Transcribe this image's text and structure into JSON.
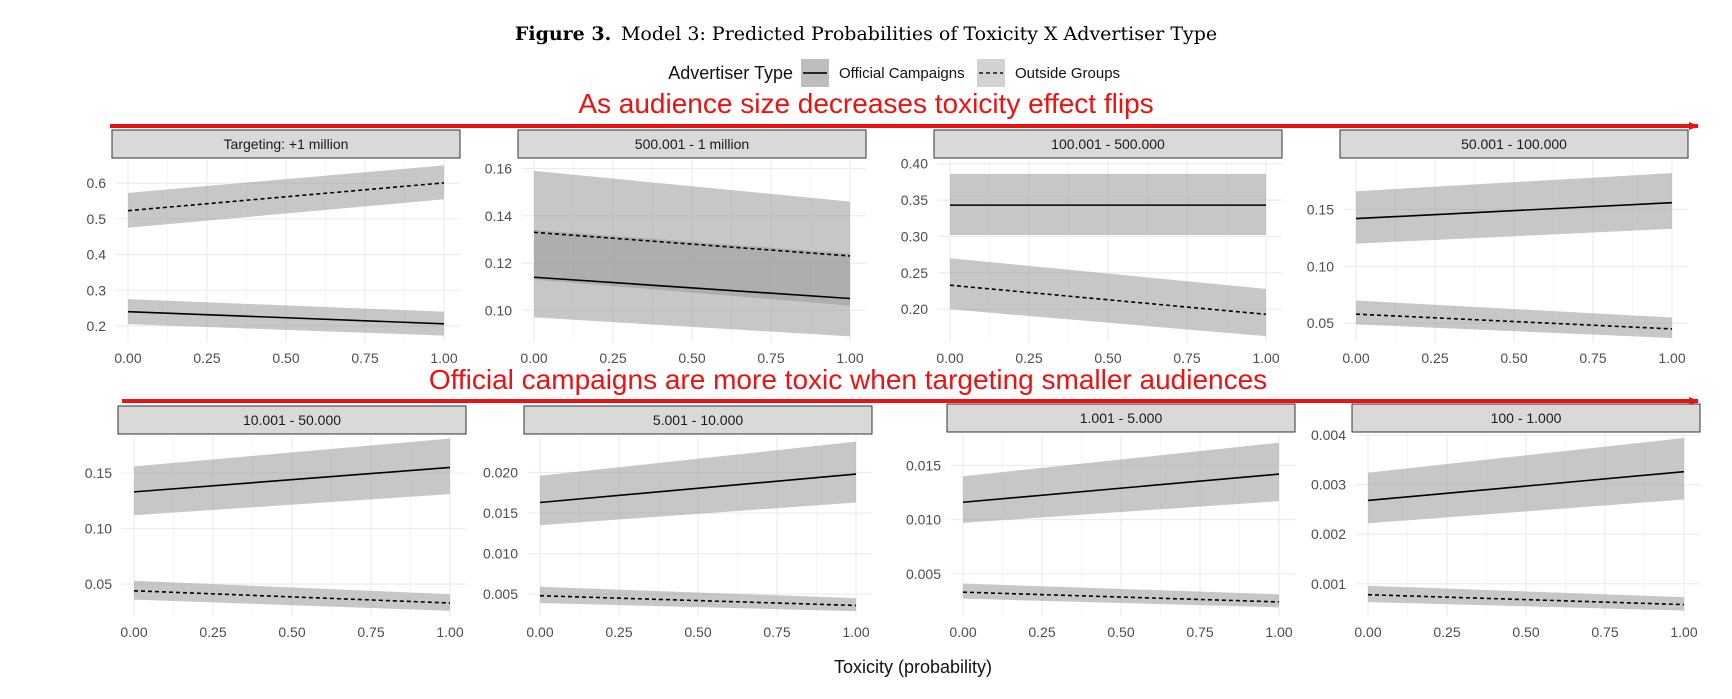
{
  "figure": {
    "label": "Figure 3.",
    "caption": "Model 3: Predicted Probabilities of Toxicity X Advertiser Type",
    "legend_title": "Advertiser Type",
    "legend_entries": [
      {
        "name": "Official Campaigns",
        "style": "solid"
      },
      {
        "name": "Outside Groups",
        "style": "dashed"
      }
    ],
    "annotation_top": "As audience size decreases toxicity effect flips",
    "annotation_bottom": "Official campaigns are more toxic when targeting smaller audiences",
    "xlabel": "Toxicity (probability)",
    "colors": {
      "annotation": "#ee1111",
      "band": "#999999",
      "grid": "#ebebeb",
      "strip": "#d9d9d9"
    }
  },
  "chart_data": [
    {
      "type": "line",
      "title": "Targeting: +1 million",
      "x": [
        0,
        1
      ],
      "xlim": [
        0,
        1
      ],
      "xticks": [
        "0.00",
        "0.25",
        "0.50",
        "0.75",
        "1.00"
      ],
      "ylim": [
        0.155,
        0.665
      ],
      "yticks": [
        "0.2",
        "0.3",
        "0.4",
        "0.5",
        "0.6"
      ],
      "series": [
        {
          "name": "Official Campaigns",
          "values": [
            0.24,
            0.206
          ],
          "lower": [
            0.205,
            0.173
          ],
          "upper": [
            0.275,
            0.24
          ]
        },
        {
          "name": "Outside Groups",
          "values": [
            0.523,
            0.601
          ],
          "lower": [
            0.475,
            0.555
          ],
          "upper": [
            0.573,
            0.65
          ]
        }
      ]
    },
    {
      "type": "line",
      "title": "500.001 - 1 million",
      "x": [
        0,
        1
      ],
      "xlim": [
        0,
        1
      ],
      "xticks": [
        "0.00",
        "0.25",
        "0.50",
        "0.75",
        "1.00"
      ],
      "ylim": [
        0.0866,
        0.1636
      ],
      "yticks": [
        "0.10",
        "0.12",
        "0.14",
        "0.16"
      ],
      "series": [
        {
          "name": "Official Campaigns",
          "values": [
            0.114,
            0.105
          ],
          "lower": [
            0.097,
            0.089
          ],
          "upper": [
            0.134,
            0.124
          ]
        },
        {
          "name": "Outside Groups",
          "values": [
            0.133,
            0.123
          ],
          "lower": [
            0.113,
            0.102
          ],
          "upper": [
            0.159,
            0.146
          ]
        }
      ]
    },
    {
      "type": "line",
      "title": "100.001 - 500.000",
      "x": [
        0,
        1
      ],
      "xlim": [
        0,
        1
      ],
      "xticks": [
        "0.00",
        "0.25",
        "0.50",
        "0.75",
        "1.00"
      ],
      "ylim": [
        0.155,
        0.405
      ],
      "yticks": [
        "0.20",
        "0.25",
        "0.30",
        "0.35",
        "0.40"
      ],
      "series": [
        {
          "name": "Official Campaigns",
          "values": [
            0.343,
            0.343
          ],
          "lower": [
            0.302,
            0.302
          ],
          "upper": [
            0.386,
            0.386
          ]
        },
        {
          "name": "Outside Groups",
          "values": [
            0.233,
            0.193
          ],
          "lower": [
            0.2,
            0.163
          ],
          "upper": [
            0.27,
            0.228
          ]
        }
      ]
    },
    {
      "type": "line",
      "title": "50.001 - 100.000",
      "x": [
        0,
        1
      ],
      "xlim": [
        0,
        1
      ],
      "xticks": [
        "0.00",
        "0.25",
        "0.50",
        "0.75",
        "1.00"
      ],
      "ylim": [
        0.0335,
        0.1935
      ],
      "yticks": [
        "0.05",
        "0.10",
        "0.15"
      ],
      "series": [
        {
          "name": "Official Campaigns",
          "values": [
            0.142,
            0.156
          ],
          "lower": [
            0.12,
            0.133
          ],
          "upper": [
            0.166,
            0.182
          ]
        },
        {
          "name": "Outside Groups",
          "values": [
            0.058,
            0.045
          ],
          "lower": [
            0.049,
            0.037
          ],
          "upper": [
            0.07,
            0.055
          ]
        }
      ]
    },
    {
      "type": "line",
      "title": "10.001 - 50.000",
      "x": [
        0,
        1
      ],
      "xlim": [
        0,
        1
      ],
      "xticks": [
        "0.00",
        "0.25",
        "0.50",
        "0.75",
        "1.00"
      ],
      "ylim": [
        0.0213,
        0.1833
      ],
      "yticks": [
        "0.05",
        "0.10",
        "0.15"
      ],
      "series": [
        {
          "name": "Official Campaigns",
          "values": [
            0.133,
            0.155
          ],
          "lower": [
            0.112,
            0.131
          ],
          "upper": [
            0.156,
            0.181
          ]
        },
        {
          "name": "Outside Groups",
          "values": [
            0.044,
            0.033
          ],
          "lower": [
            0.036,
            0.026
          ],
          "upper": [
            0.053,
            0.041
          ]
        }
      ]
    },
    {
      "type": "line",
      "title": "5.001 - 10.000",
      "x": [
        0,
        1
      ],
      "xlim": [
        0,
        1
      ],
      "xticks": [
        "0.00",
        "0.25",
        "0.50",
        "0.75",
        "1.00"
      ],
      "ylim": [
        0.0023,
        0.0245
      ],
      "yticks": [
        "0.005",
        "0.010",
        "0.015",
        "0.020"
      ],
      "series": [
        {
          "name": "Official Campaigns",
          "values": [
            0.0163,
            0.0198
          ],
          "lower": [
            0.0135,
            0.0163
          ],
          "upper": [
            0.0196,
            0.0238
          ]
        },
        {
          "name": "Outside Groups",
          "values": [
            0.0048,
            0.0036
          ],
          "lower": [
            0.0039,
            0.0029
          ],
          "upper": [
            0.0059,
            0.0045
          ]
        }
      ]
    },
    {
      "type": "line",
      "title": "1.001 - 5.000",
      "x": [
        0,
        1
      ],
      "xlim": [
        0,
        1
      ],
      "xticks": [
        "0.00",
        "0.25",
        "0.50",
        "0.75",
        "1.00"
      ],
      "ylim": [
        0.0011,
        0.0179
      ],
      "yticks": [
        "0.005",
        "0.010",
        "0.015"
      ],
      "series": [
        {
          "name": "Official Campaigns",
          "values": [
            0.0116,
            0.0142
          ],
          "lower": [
            0.0097,
            0.0117
          ],
          "upper": [
            0.014,
            0.0171
          ]
        },
        {
          "name": "Outside Groups",
          "values": [
            0.0033,
            0.0024
          ],
          "lower": [
            0.0027,
            0.0019
          ],
          "upper": [
            0.0041,
            0.0031
          ]
        }
      ]
    },
    {
      "type": "line",
      "title": "100 - 1.000",
      "x": [
        0,
        1
      ],
      "xlim": [
        0,
        1
      ],
      "xticks": [
        "0.00",
        "0.25",
        "0.50",
        "0.75",
        "1.00"
      ],
      "ylim": [
        0.00035,
        0.00402
      ],
      "yticks": [
        "0.001",
        "0.002",
        "0.003",
        "0.004"
      ],
      "series": [
        {
          "name": "Official Campaigns",
          "values": [
            0.00268,
            0.00326
          ],
          "lower": [
            0.00222,
            0.0027
          ],
          "upper": [
            0.00324,
            0.00394
          ]
        },
        {
          "name": "Outside Groups",
          "values": [
            0.00078,
            0.00058
          ],
          "lower": [
            0.00063,
            0.00046
          ],
          "upper": [
            0.00096,
            0.00073
          ]
        }
      ]
    }
  ]
}
